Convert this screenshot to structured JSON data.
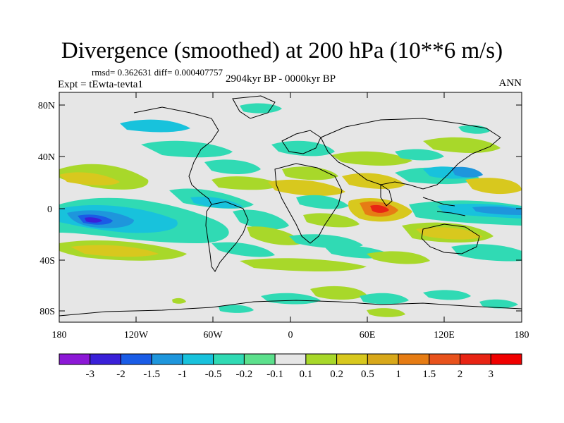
{
  "title": "Divergence (smoothed) at 200 hPa (10**6 m/s)",
  "stats": "rmsd= 0.362631 diff= 0.000407757",
  "experiment": "Expt = tEwta-tevta1",
  "period": "2904kyr BP - 0000kyr BP",
  "season": "ANN",
  "lat_labels": [
    "80N",
    "40N",
    "0",
    "40S",
    "80S"
  ],
  "lon_labels": [
    "180",
    "120W",
    "60W",
    "0",
    "60E",
    "120E",
    "180"
  ],
  "colorbar": {
    "labels": [
      "-3",
      "-2",
      "-1.5",
      "-1",
      "-0.5",
      "-0.2",
      "-0.1",
      "0.1",
      "0.2",
      "0.5",
      "1",
      "1.5",
      "2",
      "3"
    ],
    "colors": [
      "#8c18d6",
      "#3a20d8",
      "#1a5ce6",
      "#1e96dc",
      "#18c2dc",
      "#30dab4",
      "#5ce08c",
      "#e6e6e6",
      "#a8d82a",
      "#d8c81e",
      "#d8a81a",
      "#e67c14",
      "#e8521c",
      "#e82414",
      "#f00000"
    ]
  },
  "map": {
    "background": "#e6e6e6",
    "coastline_color": "#000000"
  }
}
